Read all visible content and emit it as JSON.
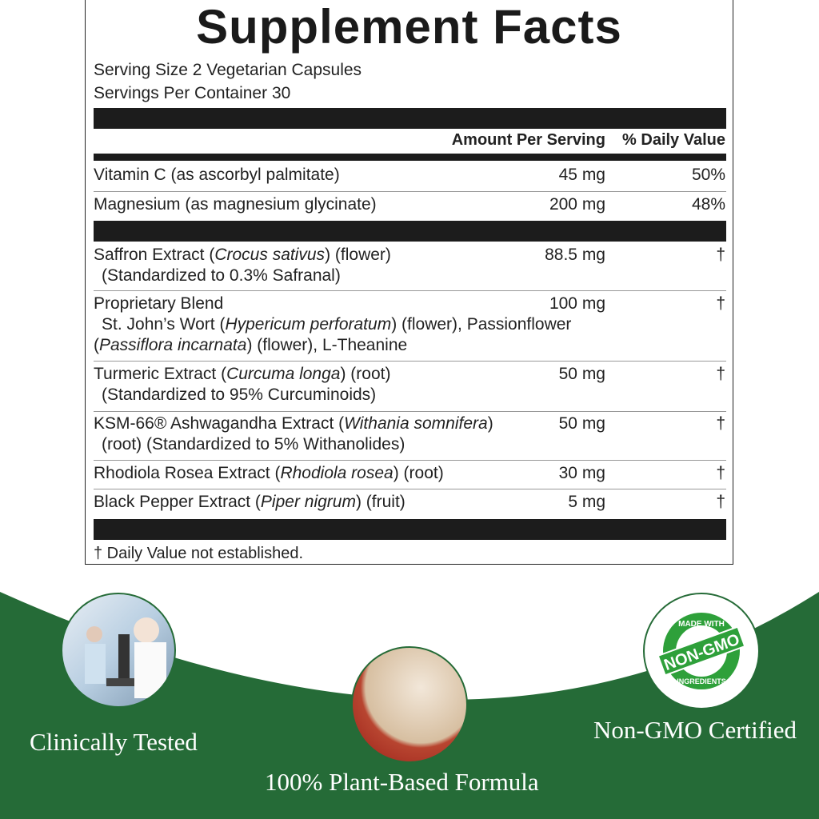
{
  "title": "Supplement Facts",
  "serving_size": "Serving Size 2 Vegetarian Capsules",
  "servings_per_container": "Servings Per Container 30",
  "header": {
    "amount": "Amount Per Serving",
    "dv": "% Daily Value"
  },
  "rows": [
    {
      "name": "Vitamin C (as ascorbyl palmitate)",
      "amount": "45 mg",
      "dv": "50%"
    },
    {
      "name": "Magnesium (as magnesium glycinate)",
      "amount": "200 mg",
      "dv": "48%"
    },
    {
      "name_a": "Saffron Extract (",
      "name_i": "Crocus sativus",
      "name_b": ") (flower)",
      "sub": "(Standardized to 0.3% Safranal)",
      "amount": "88.5 mg",
      "dv": "†"
    },
    {
      "name": "Proprietary Blend",
      "sub1a": "St. John’s Wort (",
      "sub1i": "Hypericum perforatum",
      "sub1b": ") (flower), Passionflower",
      "sub2a": "(",
      "sub2i": "Passiflora incarnata",
      "sub2b": ") (flower), L-Theanine",
      "amount": "100 mg",
      "dv": "†"
    },
    {
      "name_a": "Turmeric Extract (",
      "name_i": "Curcuma longa",
      "name_b": ") (root)",
      "sub": "(Standardized to 95% Curcuminoids)",
      "amount": "50 mg",
      "dv": "†"
    },
    {
      "name_a": "KSM-66® Ashwagandha Extract (",
      "name_i": "Withania somnifera",
      "name_b": ")",
      "sub": "(root) (Standardized to 5% Withanolides)",
      "amount": "50 mg",
      "dv": "†"
    },
    {
      "name_a": "Rhodiola Rosea Extract (",
      "name_i": "Rhodiola rosea",
      "name_b": ") (root)",
      "amount": "30 mg",
      "dv": "†"
    },
    {
      "name_a": "Black Pepper Extract (",
      "name_i": "Piper nigrum",
      "name_b": ") (fruit)",
      "amount": "5 mg",
      "dv": "†"
    }
  ],
  "footnote": "† Daily Value not established.",
  "features": [
    {
      "label": "Clinically Tested",
      "icon": "lab-scientist-image"
    },
    {
      "label": "100% Plant-Based Formula",
      "icon": "saffron-bowl-image"
    },
    {
      "label": "Non-GMO Certified",
      "icon": "non-gmo-badge"
    }
  ],
  "badge": {
    "top": "MADE WITH",
    "middle": "NON-GMO",
    "bottom": "INGREDIENTS"
  },
  "colors": {
    "green": "#256b37",
    "badge_green": "#2ea03a"
  }
}
